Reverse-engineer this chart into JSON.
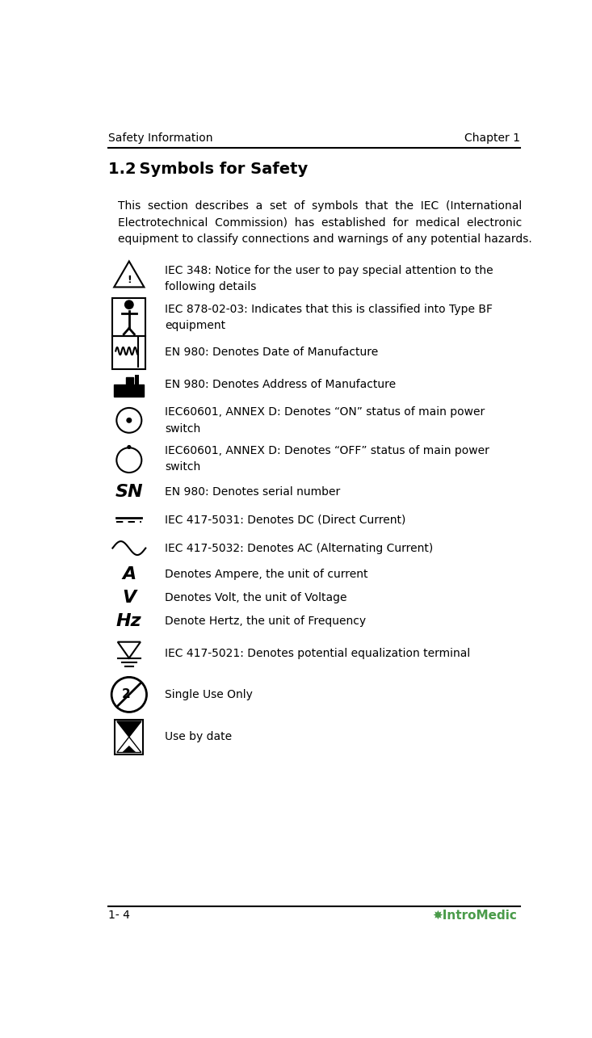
{
  "header_left": "Safety Information",
  "header_right": "Chapter 1",
  "title": "1.2 Symbols for Safety",
  "footer_left": "1- 4",
  "rows": [
    {
      "symbol": "warning_triangle",
      "text": "IEC 348: Notice for the user to pay special attention to the\nfollowing details"
    },
    {
      "symbol": "person_box",
      "text": "IEC 878-02-03: Indicates that this is classified into Type BF\nequipment"
    },
    {
      "symbol": "date_mfg",
      "text": "EN 980: Denotes Date of Manufacture"
    },
    {
      "symbol": "addr_mfg",
      "text": "EN 980: Denotes Address of Manufacture"
    },
    {
      "symbol": "power_on",
      "text": "IEC60601, ANNEX D: Denotes “ON” status of main power\nswitch"
    },
    {
      "symbol": "power_off",
      "text": "IEC60601, ANNEX D: Denotes “OFF” status of main power\nswitch"
    },
    {
      "symbol": "SN",
      "text": "EN 980: Denotes serial number"
    },
    {
      "symbol": "dc",
      "text": "IEC 417-5031: Denotes DC (Direct Current)"
    },
    {
      "symbol": "ac",
      "text": "IEC 417-5032: Denotes AC (Alternating Current)"
    },
    {
      "symbol": "A",
      "text": "Denotes Ampere, the unit of current"
    },
    {
      "symbol": "V",
      "text": "Denotes Volt, the unit of Voltage"
    },
    {
      "symbol": "Hz",
      "text": "Denote Hertz, the unit of Frequency"
    },
    {
      "symbol": "equalization",
      "text": "IEC 417-5021: Denotes potential equalization terminal"
    },
    {
      "symbol": "single_use",
      "text": "Single Use Only"
    },
    {
      "symbol": "use_by_date",
      "text": "Use by date"
    }
  ],
  "bg_color": "#ffffff",
  "text_color": "#000000"
}
